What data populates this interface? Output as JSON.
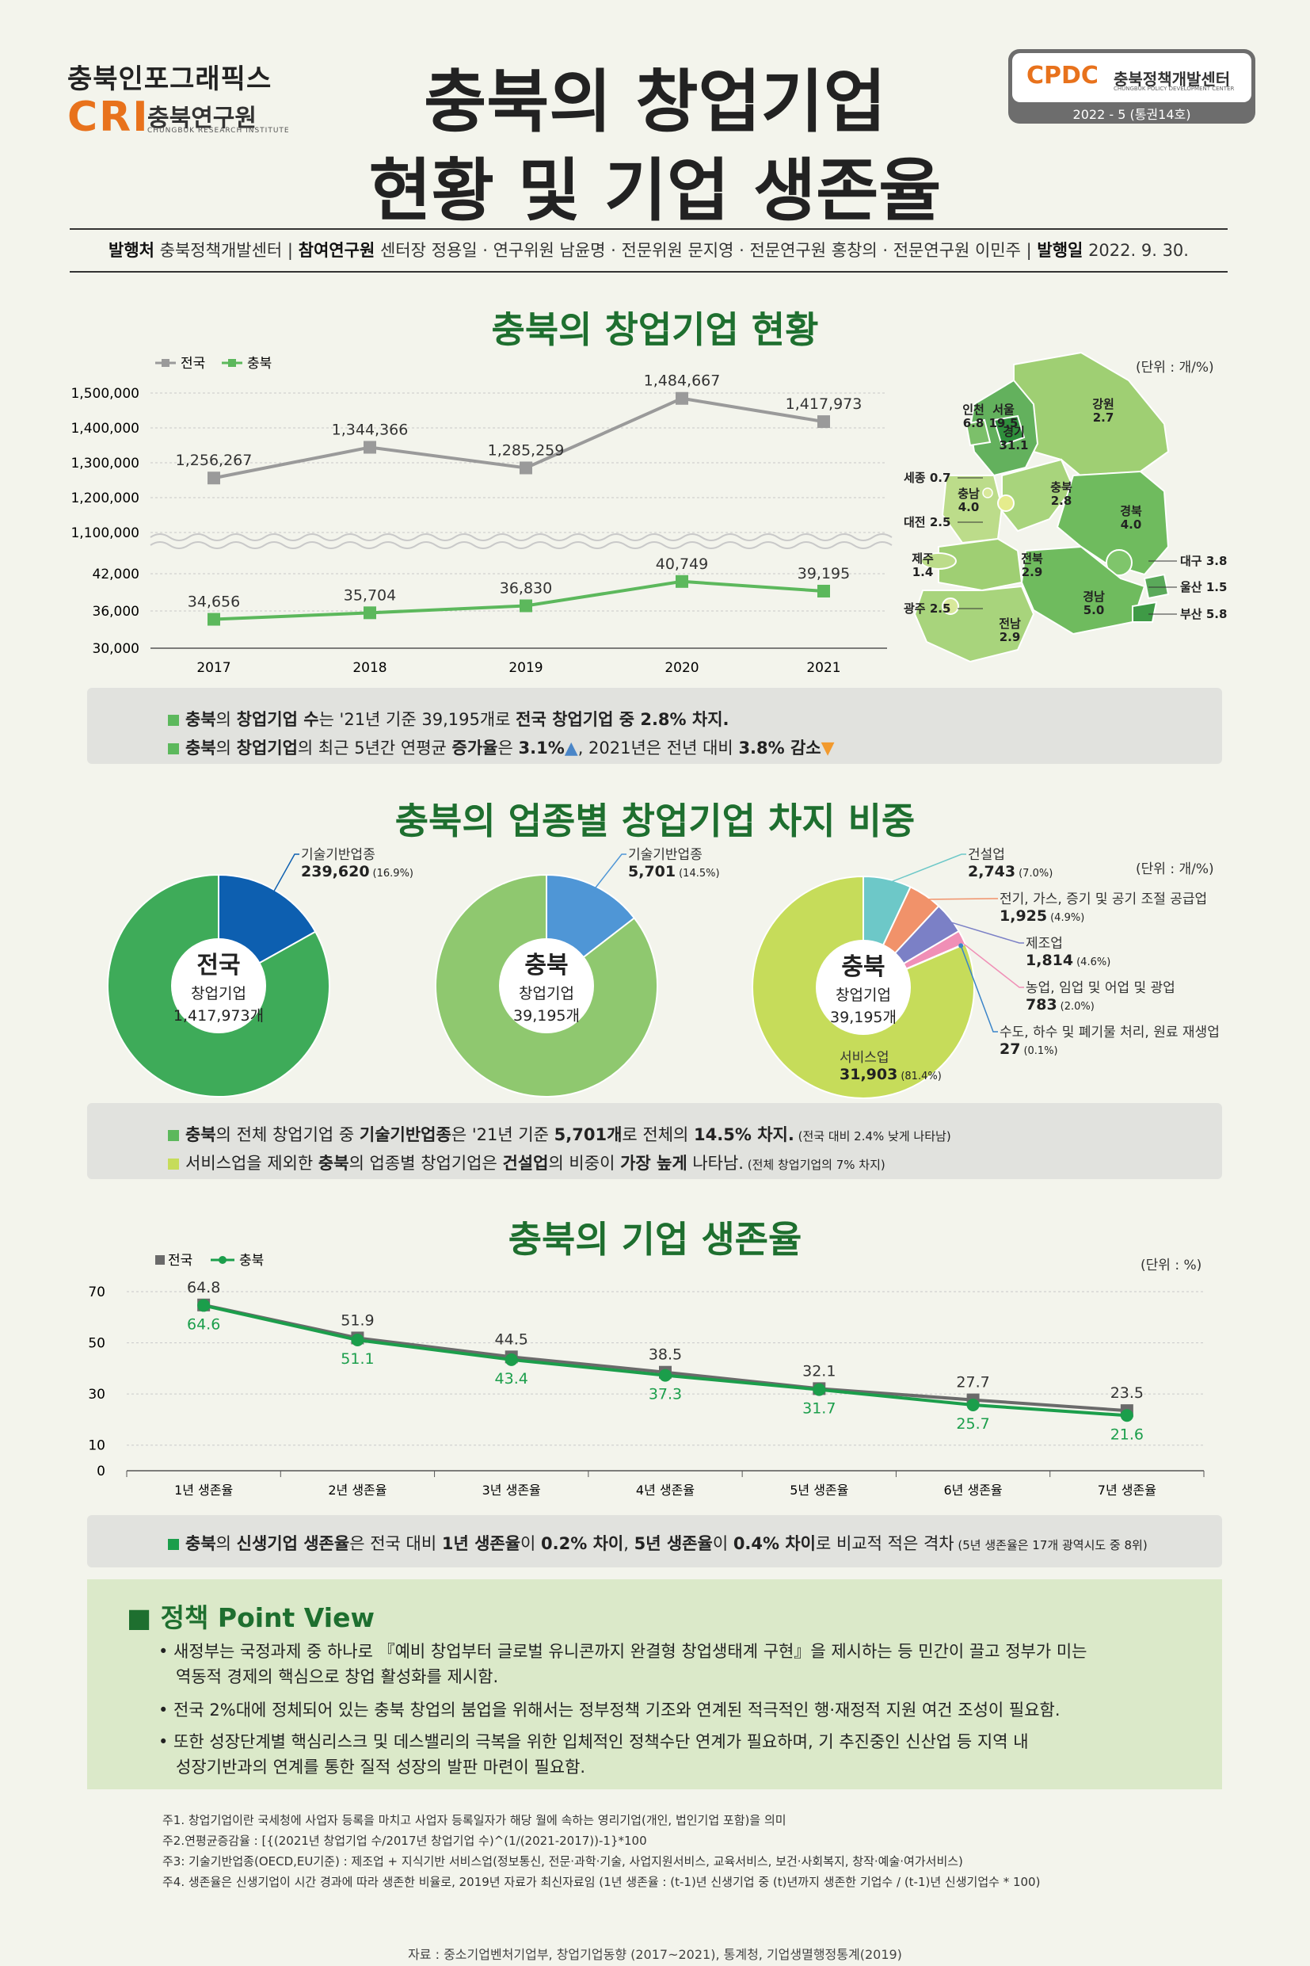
{
  "header": {
    "brand_top": "충북인포그래픽스",
    "brand_cri": "CRI",
    "brand_kor": "충북연구원",
    "brand_eng": "CHUNGBUK RESEARCH INSTITUTE",
    "title_line1": "충북의 창업기업",
    "title_line2": "현황 및 기업 생존율",
    "cpdc_logo": "CPDC",
    "cpdc_name": "충북정책개발센터",
    "cpdc_eng": "CHUNGBUK POLICY DEVELOPMENT CENTER",
    "issue": "2022 - 5 (통권14호)"
  },
  "publication": {
    "publisher_label": "발행처",
    "publisher": "충북정책개발센터",
    "researchers_label": "참여연구원",
    "researchers": "센터장 정용일 · 연구위원 남윤명 · 전문위원 문지영 · 전문연구원 홍창의 · 전문연구원 이민주",
    "date_label": "발행일",
    "date": "2022. 9. 30."
  },
  "sections": {
    "s1_title": "충북의 창업기업 현황",
    "s2_title": "충북의 업종별 창업기업 차지 비중",
    "s3_title": "충북의 기업 생존율"
  },
  "units": {
    "count": "(단위 : 개/%)",
    "percent": "(단위 : %)"
  },
  "chart_data": [
    {
      "type": "line",
      "x": [
        "2017",
        "2018",
        "2019",
        "2020",
        "2021"
      ],
      "series": [
        {
          "name": "전국",
          "values": [
            1256267,
            1344366,
            1285259,
            1484667,
            1417973
          ],
          "labels": [
            "1,256,267",
            "1,344,366",
            "1,285,259",
            "1,484,667",
            "1,417,973"
          ],
          "color": "#9a9a9a"
        },
        {
          "name": "충북",
          "values": [
            34656,
            35704,
            36830,
            40749,
            39195
          ],
          "labels": [
            "34,656",
            "35,704",
            "36,830",
            "40,749",
            "39,195"
          ],
          "color": "#5cb85c"
        }
      ],
      "y_upper_ticks": [
        "1,500,000",
        "1,400,000",
        "1,300,000",
        "1,200,000",
        "1,100,000"
      ],
      "y_lower_ticks": [
        "42,000",
        "36,000",
        "30,000"
      ],
      "ylim_upper": [
        1050000,
        1500000
      ],
      "ylim_lower": [
        30000,
        42000
      ]
    },
    {
      "type": "pie",
      "title": "전국",
      "center_label": "창업기업",
      "center_value": "1,417,973개",
      "slices": [
        {
          "name": "기술기반업종",
          "value": 239620,
          "value_text": "239,620",
          "percent": "(16.9%)",
          "color": "#0d5fb0"
        },
        {
          "name": "기타",
          "value": 1178353,
          "color": "#3eab59"
        }
      ]
    },
    {
      "type": "pie",
      "title": "충북",
      "center_label": "창업기업",
      "center_value": "39,195개",
      "slices": [
        {
          "name": "기술기반업종",
          "value": 5701,
          "value_text": "5,701",
          "percent": "(14.5%)",
          "color": "#4f96d6"
        },
        {
          "name": "기타",
          "value": 33494,
          "color": "#8fc86f"
        }
      ]
    },
    {
      "type": "pie",
      "title": "충북",
      "center_label": "창업기업",
      "center_value": "39,195개",
      "slices": [
        {
          "name": "건설업",
          "value": 2743,
          "value_text": "2,743",
          "percent": "(7.0%)",
          "color": "#6dc8c8"
        },
        {
          "name": "전기, 가스, 증기 및 공기 조절 공급업",
          "value": 1925,
          "value_text": "1,925",
          "percent": "(4.9%)",
          "color": "#f1926a"
        },
        {
          "name": "제조업",
          "value": 1814,
          "value_text": "1,814",
          "percent": "(4.6%)",
          "color": "#7b80c6"
        },
        {
          "name": "농업, 임업 및 어업 및 광업",
          "value": 783,
          "value_text": "783",
          "percent": "(2.0%)",
          "color": "#f08fb6"
        },
        {
          "name": "수도, 하수 및 폐기물 처리, 원료 재생업",
          "value": 27,
          "value_text": "27",
          "percent": "(0.1%)",
          "color": "#3a84c9"
        },
        {
          "name": "서비스업",
          "value": 31903,
          "value_text": "31,903",
          "percent": "(81.4%)",
          "color": "#c6dc5a"
        }
      ]
    },
    {
      "type": "line",
      "x": [
        "1년 생존율",
        "2년 생존율",
        "3년 생존율",
        "4년 생존율",
        "5년 생존율",
        "6년 생존율",
        "7년 생존율"
      ],
      "series": [
        {
          "name": "전국",
          "values": [
            64.8,
            51.9,
            44.5,
            38.5,
            32.1,
            27.7,
            23.5
          ],
          "color": "#6a6a6a"
        },
        {
          "name": "충북",
          "values": [
            64.6,
            51.1,
            43.4,
            37.3,
            31.7,
            25.7,
            21.6
          ],
          "color": "#1b9e4b"
        }
      ],
      "y_ticks": [
        70,
        50,
        30,
        10,
        0
      ],
      "ylim": [
        0,
        70
      ]
    }
  ],
  "map": {
    "regions": [
      {
        "name": "인천",
        "value": "6.8"
      },
      {
        "name": "서울",
        "value": "19.5"
      },
      {
        "name": "경기",
        "value": "31.1"
      },
      {
        "name": "강원",
        "value": "2.7"
      },
      {
        "name": "세종",
        "value": "0.7"
      },
      {
        "name": "충남",
        "value": "4.0"
      },
      {
        "name": "충북",
        "value": "2.8"
      },
      {
        "name": "대전",
        "value": "2.5"
      },
      {
        "name": "경북",
        "value": "4.0"
      },
      {
        "name": "제주",
        "value": "1.4"
      },
      {
        "name": "전북",
        "value": "2.9"
      },
      {
        "name": "대구",
        "value": "3.8"
      },
      {
        "name": "울산",
        "value": "1.5"
      },
      {
        "name": "경남",
        "value": "5.0"
      },
      {
        "name": "광주",
        "value": "2.5"
      },
      {
        "name": "부산",
        "value": "5.8"
      },
      {
        "name": "전남",
        "value": "2.9"
      }
    ]
  },
  "summary1": {
    "l1": {
      "a": "충북",
      "b": "의 ",
      "c": "창업기업 수",
      "d": "는 '21년 기준 39,195개로 ",
      "e": "전국 창업기업 중 2.8% 차지."
    },
    "l2": {
      "a": "충북",
      "b": "의 ",
      "c": "창업기업",
      "d": "의 최근 5년간 연평균 ",
      "e": "증가율",
      "f": "은 ",
      "g": "3.1%",
      "h": ", 2021년은 전년 대비 ",
      "i": "3.8% 감소"
    }
  },
  "summary2": {
    "l1": {
      "a": "충북",
      "b": "의 전체 창업기업 중 ",
      "c": "기술기반업종",
      "d": "은 '21년 기준 ",
      "e": "5,701개",
      "f": "로 전체의 ",
      "g": "14.5% 차지.",
      "h": " (전국 대비 2.4% 낮게 나타남)"
    },
    "l2": {
      "a": "서비스업을 제외한 ",
      "b": "충북",
      "c": "의 업종별 창업기업은 ",
      "d": "건설업",
      "e": "의 비중이 ",
      "f": "가장 높게",
      "g": " 나타남.",
      "h": " (전체 창업기업의 7% 차지)"
    }
  },
  "summary3": {
    "a": "충북",
    "b": "의 ",
    "c": "신생기업 생존율",
    "d": "은 전국 대비 ",
    "e": "1년 생존율",
    "f": "이 ",
    "g": "0.2% 차이",
    "h": ", ",
    "i": "5년 생존율",
    "j": "이 ",
    "k": "0.4% 차이",
    "l": "로 비교적 적은 격차",
    "m": " (5년 생존율은 17개 광역시도 중 8위)"
  },
  "policy": {
    "title": "정책 Point View",
    "lines": [
      "• 새정부는 국정과제 중 하나로 『예비 창업부터 글로벌 유니콘까지 완결형 창업생태계 구현』을 제시하는 등 민간이 끌고 정부가 미는",
      "역동적 경제의 핵심으로 창업 활성화를 제시함.",
      "• 전국 2%대에 정체되어 있는 충북 창업의 붐업을 위해서는 정부정책 기조와 연계된 적극적인 행·재정적 지원 여건 조성이 필요함.",
      "• 또한 성장단계별 핵심리스크 및 데스밸리의 극복을 위한 입체적인 정책수단 연계가 필요하며, 기 추진중인 신산업 등 지역 내",
      "성장기반과의 연계를 통한 질적 성장의 발판 마련이 필요함."
    ]
  },
  "notes": [
    "주1. 창업기업이란 국세청에 사업자 등록을 마치고 사업자 등록일자가 해당 월에 속하는 영리기업(개인, 법인기업 포함)을 의미",
    "주2.연평균증감율 : [{(2021년 창업기업 수/2017년 창업기업 수)^(1/(2021-2017))-1}*100",
    "주3: 기술기반업종(OECD,EU기준) : 제조업 + 지식기반 서비스업(정보통신, 전문·과학·기술, 사업지원서비스, 교육서비스, 보건·사회복지, 창작·예술·여가서비스)",
    "주4. 생존율은 신생기업이 시간 경과에 따라 생존한 비율로, 2019년 자료가 최신자료임 (1년 생존율 : (t-1)년 신생기업 중 (t)년까지 생존한 기업수 / (t-1)년 신생기업수 * 100)"
  ],
  "source": "자료 : 중소기업벤처기업부, 창업기업동향 (2017~2021), 통계청, 기업생멸행정통계(2019)",
  "colors": {
    "accent_green": "#1e6f2f",
    "brand_orange": "#e8721c",
    "arrow_up": "#4a86c8",
    "arrow_down": "#f29a2e"
  }
}
